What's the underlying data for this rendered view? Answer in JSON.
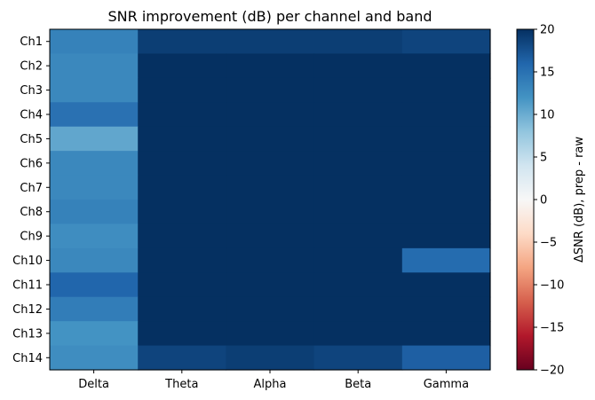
{
  "chart_data": {
    "type": "heatmap",
    "title": "SNR improvement (dB) per channel and band",
    "xlabel": "",
    "ylabel": "",
    "x_categories": [
      "Delta",
      "Theta",
      "Alpha",
      "Beta",
      "Gamma"
    ],
    "y_categories": [
      "Ch1",
      "Ch2",
      "Ch3",
      "Ch4",
      "Ch5",
      "Ch6",
      "Ch7",
      "Ch8",
      "Ch9",
      "Ch10",
      "Ch11",
      "Ch12",
      "Ch13",
      "Ch14"
    ],
    "values": [
      [
        13.5,
        19.0,
        19.0,
        19.0,
        18.5
      ],
      [
        13.0,
        20.0,
        20.0,
        20.0,
        20.0
      ],
      [
        13.0,
        20.0,
        20.0,
        20.0,
        20.0
      ],
      [
        15.0,
        20.0,
        20.0,
        20.0,
        20.0
      ],
      [
        10.5,
        20.0,
        20.0,
        20.0,
        20.0
      ],
      [
        13.0,
        20.0,
        20.0,
        20.0,
        20.0
      ],
      [
        13.0,
        20.0,
        20.0,
        20.0,
        20.0
      ],
      [
        13.5,
        20.0,
        20.0,
        20.0,
        20.0
      ],
      [
        12.5,
        20.0,
        20.0,
        20.0,
        20.0
      ],
      [
        13.0,
        20.0,
        20.0,
        20.0,
        15.5
      ],
      [
        16.0,
        20.0,
        20.0,
        20.0,
        20.0
      ],
      [
        14.0,
        20.0,
        20.0,
        20.0,
        20.0
      ],
      [
        12.0,
        20.0,
        20.0,
        20.0,
        20.0
      ],
      [
        12.5,
        18.5,
        19.0,
        18.5,
        16.5
      ]
    ],
    "colormap": "RdBu",
    "vmin": -20,
    "vmax": 20,
    "colorbar": {
      "label": "ΔSNR (dB), prep - raw",
      "ticks": [
        -20,
        -15,
        -10,
        -5,
        0,
        5,
        10,
        15,
        20
      ],
      "tick_labels": [
        "−20",
        "−15",
        "−10",
        "−5",
        "0",
        "5",
        "10",
        "15",
        "20"
      ]
    },
    "colormap_stops": [
      [
        0.0,
        "#67001f"
      ],
      [
        0.1,
        "#b2182b"
      ],
      [
        0.2,
        "#d6604d"
      ],
      [
        0.3,
        "#f4a582"
      ],
      [
        0.4,
        "#fddbc7"
      ],
      [
        0.5,
        "#f7f7f7"
      ],
      [
        0.6,
        "#d1e5f0"
      ],
      [
        0.7,
        "#92c5de"
      ],
      [
        0.8,
        "#4393c3"
      ],
      [
        0.9,
        "#2166ac"
      ],
      [
        1.0,
        "#053061"
      ]
    ]
  }
}
